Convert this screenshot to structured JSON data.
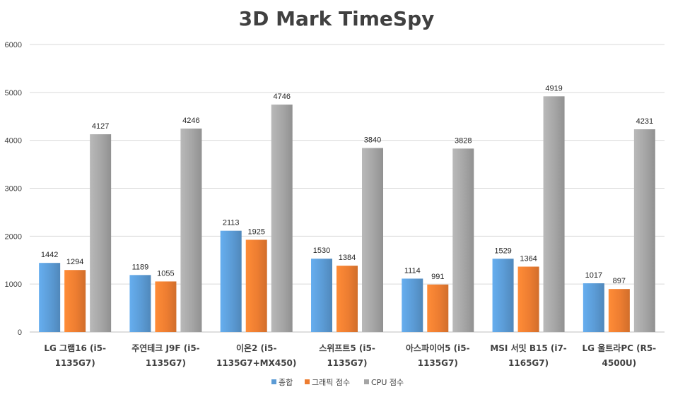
{
  "chart_data": {
    "type": "bar",
    "title": "3D Mark TimeSpy",
    "xlabel": "",
    "ylabel": "",
    "ylim": [
      0,
      6000
    ],
    "yticks": [
      0,
      1000,
      2000,
      3000,
      4000,
      5000,
      6000
    ],
    "grid": true,
    "legend_position": "bottom",
    "categories": [
      [
        "LG 그램16 (i5-",
        "1135G7)"
      ],
      [
        "주연테크 J9F (i5-",
        "1135G7)"
      ],
      [
        "이온2 (i5-",
        "1135G7+MX450)"
      ],
      [
        "스위프트5 (i5-",
        "1135G7)"
      ],
      [
        "아스파이어5 (i5-",
        "1135G7)"
      ],
      [
        "MSI 서밋 B15 (i7-",
        "1165G7)"
      ],
      [
        "LG 울트라PC (R5-",
        "4500U)"
      ]
    ],
    "series": [
      {
        "name": "종합",
        "color": "#5B9BD5",
        "values": [
          1442,
          1189,
          2113,
          1530,
          1114,
          1529,
          1017
        ]
      },
      {
        "name": "그래픽 점수",
        "color": "#ED7D31",
        "values": [
          1294,
          1055,
          1925,
          1384,
          991,
          1364,
          897
        ]
      },
      {
        "name": "CPU 점수",
        "color": "#A5A5A5",
        "values": [
          4127,
          4246,
          4746,
          3840,
          3828,
          4919,
          4231
        ]
      }
    ]
  }
}
